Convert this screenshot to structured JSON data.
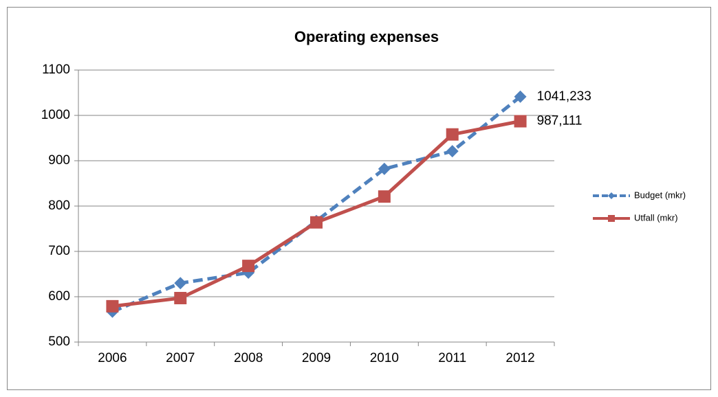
{
  "chart_data": {
    "type": "line",
    "title": "Operating expenses",
    "categories": [
      "2006",
      "2007",
      "2008",
      "2009",
      "2010",
      "2011",
      "2012"
    ],
    "series": [
      {
        "name": "Budget (mkr)",
        "color": "#4f81bd",
        "dash": true,
        "marker": "diamond",
        "values": [
          567,
          630,
          653,
          767,
          882,
          921,
          1041.233
        ],
        "value_labels": [
          null,
          null,
          null,
          null,
          null,
          null,
          "1041,233"
        ]
      },
      {
        "name": "Utfall (mkr)",
        "color": "#c0504d",
        "dash": false,
        "marker": "square",
        "values": [
          579,
          597,
          668,
          764,
          821,
          958,
          987.111
        ],
        "value_labels": [
          null,
          null,
          null,
          null,
          null,
          null,
          "987,111"
        ]
      }
    ],
    "ylim": [
      500,
      1100
    ],
    "yticks": [
      500,
      600,
      700,
      800,
      900,
      1000,
      1100
    ],
    "grid": true,
    "legend": "right"
  }
}
